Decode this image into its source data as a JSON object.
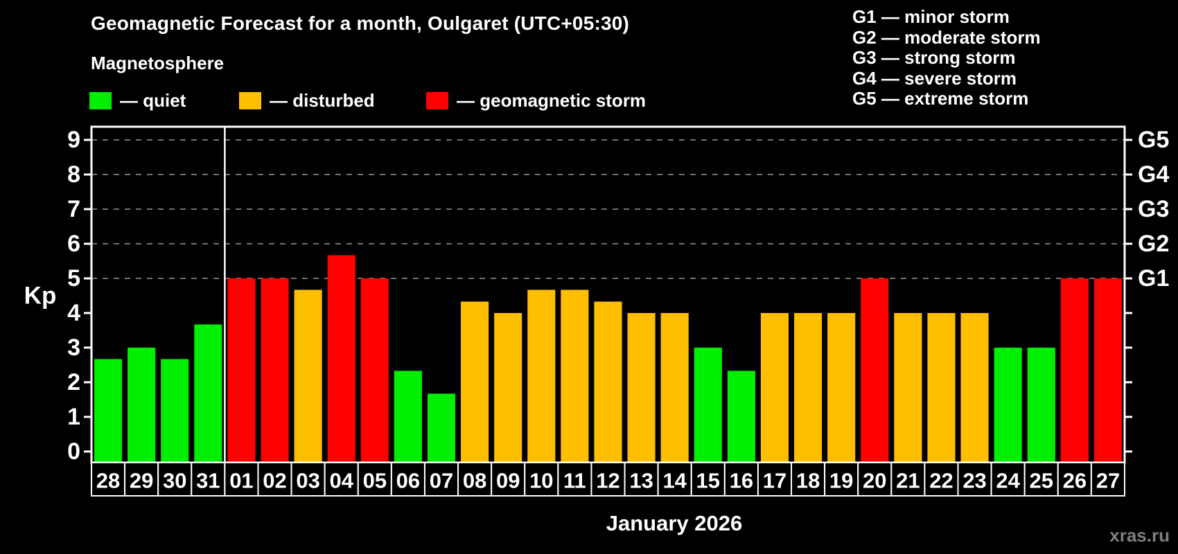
{
  "header": {
    "title": "Geomagnetic Forecast for a month, Oulgaret (UTC+05:30)",
    "subtitle": "Magnetosphere"
  },
  "legend": {
    "items": [
      {
        "status": "quiet",
        "label": "— quiet"
      },
      {
        "status": "disturbed",
        "label": "— disturbed"
      },
      {
        "status": "storm",
        "label": "— geomagnetic storm"
      }
    ]
  },
  "g_legend": [
    "G1 — minor storm",
    "G2 — moderate storm",
    "G3 — strong storm",
    "G4 — severe storm",
    "G5 — extreme storm"
  ],
  "axis": {
    "y_label": "Kp",
    "y_ticks": [
      0,
      1,
      2,
      3,
      4,
      5,
      6,
      7,
      8,
      9
    ],
    "g_ticks": [
      {
        "label": "G1",
        "value": 5
      },
      {
        "label": "G2",
        "value": 6
      },
      {
        "label": "G3",
        "value": 7
      },
      {
        "label": "G4",
        "value": 8
      },
      {
        "label": "G5",
        "value": 9
      }
    ],
    "x_label": "January 2026"
  },
  "watermark": "xras.ru",
  "colors": {
    "background": "#000000",
    "quiet": "#00ee00",
    "disturbed": "#ffbe00",
    "storm": "#ff0000",
    "grid": "#999999",
    "frame": "#ffffff",
    "watermark": "#7f7f7f"
  },
  "chart_data": {
    "type": "bar",
    "title": "Geomagnetic Forecast for a month, Oulgaret (UTC+05:30)",
    "xlabel": "January 2026",
    "ylabel": "Kp",
    "ylim": [
      0,
      9
    ],
    "grid": "dashed horizontal at Kp 5-9 (G1-G5)",
    "legend_position": "top-left",
    "month_separator_after_index": 3,
    "categories": [
      "28",
      "29",
      "30",
      "31",
      "01",
      "02",
      "03",
      "04",
      "05",
      "06",
      "07",
      "08",
      "09",
      "10",
      "11",
      "12",
      "13",
      "14",
      "15",
      "16",
      "17",
      "18",
      "19",
      "20",
      "21",
      "22",
      "23",
      "24",
      "25",
      "26",
      "27"
    ],
    "values": [
      2.67,
      3.0,
      2.67,
      3.67,
      5.0,
      5.0,
      4.67,
      5.67,
      5.0,
      2.33,
      1.67,
      4.33,
      4.0,
      4.67,
      4.67,
      4.33,
      4.0,
      4.0,
      3.0,
      2.33,
      4.0,
      4.0,
      4.0,
      5.0,
      4.0,
      4.0,
      4.0,
      3.0,
      3.0,
      5.0,
      5.0
    ],
    "statuses": [
      "quiet",
      "quiet",
      "quiet",
      "quiet",
      "storm",
      "storm",
      "disturbed",
      "storm",
      "storm",
      "quiet",
      "quiet",
      "disturbed",
      "disturbed",
      "disturbed",
      "disturbed",
      "disturbed",
      "disturbed",
      "disturbed",
      "quiet",
      "quiet",
      "disturbed",
      "disturbed",
      "disturbed",
      "storm",
      "disturbed",
      "disturbed",
      "disturbed",
      "quiet",
      "quiet",
      "storm",
      "storm"
    ]
  }
}
